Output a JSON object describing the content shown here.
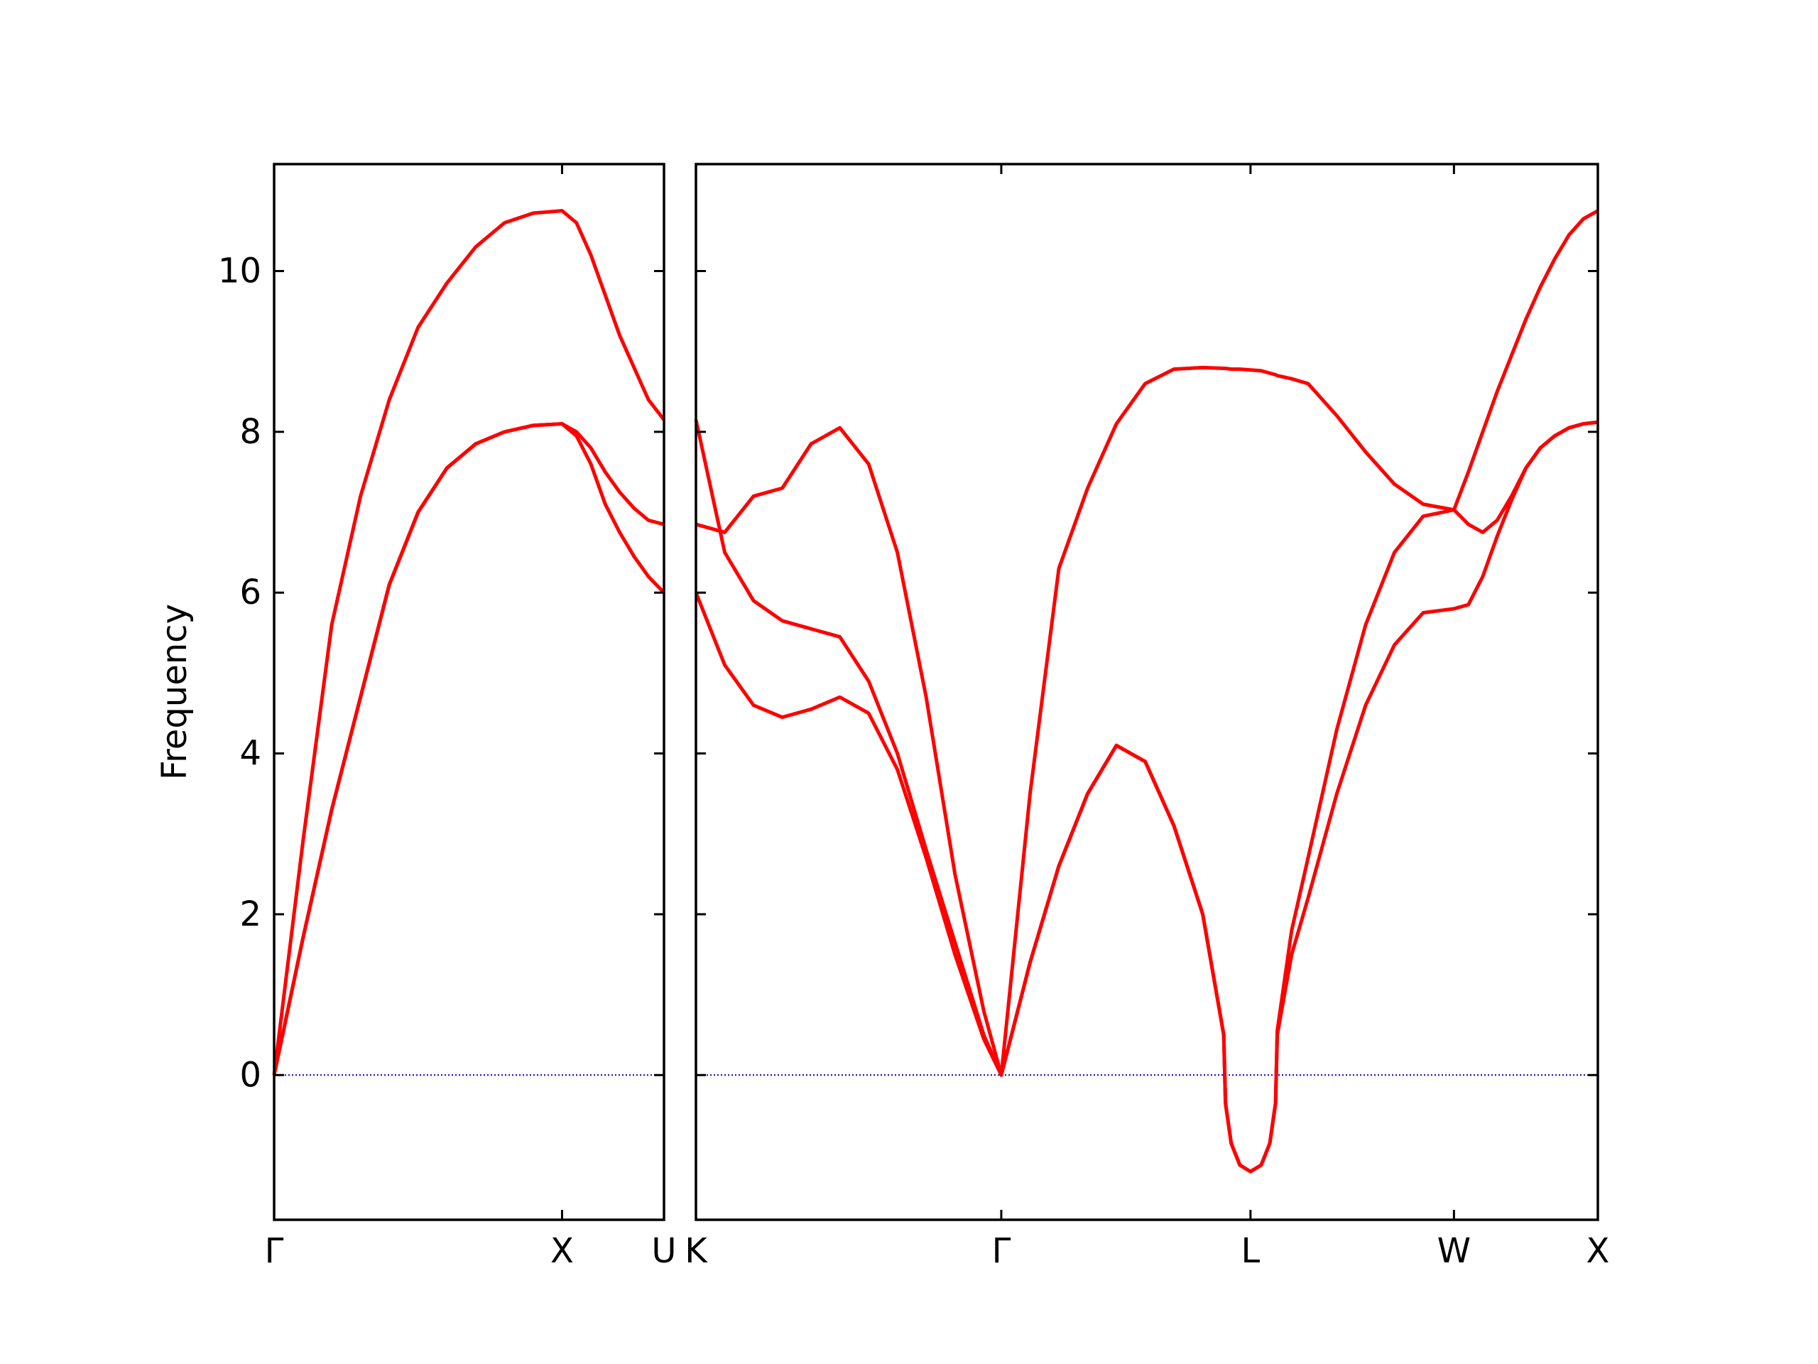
{
  "chart_data": [
    {
      "type": "line",
      "ylabel": "Frequency",
      "x": [
        0,
        0.1,
        0.2,
        0.3,
        0.4,
        0.5,
        0.6,
        0.7,
        0.8,
        0.9,
        1.0,
        1.05,
        1.1,
        1.15,
        1.2,
        1.25,
        1.3,
        1.354
      ],
      "xlim": [
        0,
        1.354
      ],
      "xticks": [
        {
          "value": 0,
          "label": "Γ"
        },
        {
          "value": 1,
          "label": "X"
        },
        {
          "value": 1.354,
          "label": "U"
        }
      ],
      "ylim": [
        -1.8,
        11.33
      ],
      "yticks": [
        0,
        2,
        4,
        6,
        8,
        10
      ],
      "show_ytick_labels": true,
      "zero_line": true,
      "zero_line_color": "#0000cc",
      "series": [
        {
          "color": "#ff0000",
          "values": [
            0,
            2.9,
            5.6,
            7.2,
            8.4,
            9.3,
            9.85,
            10.3,
            10.6,
            10.72,
            10.75,
            10.6,
            10.2,
            9.7,
            9.2,
            8.8,
            8.4,
            8.15
          ]
        },
        {
          "color": "#ff0000",
          "values": [
            0,
            1.7,
            3.3,
            4.7,
            6.1,
            7.0,
            7.55,
            7.85,
            8.0,
            8.08,
            8.1,
            7.95,
            7.6,
            7.1,
            6.75,
            6.45,
            6.2,
            6.0
          ]
        },
        {
          "color": "#ff0000",
          "values": [
            0,
            1.7,
            3.3,
            4.7,
            6.1,
            7.0,
            7.55,
            7.85,
            8.0,
            8.08,
            8.1,
            8.0,
            7.8,
            7.5,
            7.25,
            7.05,
            6.9,
            6.85
          ]
        }
      ]
    },
    {
      "type": "line",
      "x": [
        0,
        0.1,
        0.2,
        0.3,
        0.4,
        0.5,
        0.6,
        0.7,
        0.8,
        0.9,
        1.0,
        1.061,
        1.161,
        1.261,
        1.361,
        1.461,
        1.561,
        1.661,
        1.761,
        1.834,
        1.84,
        1.86,
        1.89,
        1.927,
        1.964,
        1.994,
        2.014,
        2.02,
        2.07,
        2.127,
        2.227,
        2.327,
        2.427,
        2.527,
        2.634,
        2.684,
        2.734,
        2.784,
        2.834,
        2.884,
        2.934,
        2.984,
        3.034,
        3.084,
        3.134
      ],
      "xlim": [
        0,
        3.134
      ],
      "xticks": [
        {
          "value": 0,
          "label": "K"
        },
        {
          "value": 1.061,
          "label": "Γ"
        },
        {
          "value": 1.927,
          "label": "L"
        },
        {
          "value": 2.634,
          "label": "W"
        },
        {
          "value": 3.134,
          "label": "X"
        }
      ],
      "ylim": [
        -1.8,
        11.33
      ],
      "yticks": [
        0,
        2,
        4,
        6,
        8,
        10
      ],
      "show_ytick_labels": false,
      "zero_line": true,
      "zero_line_color": "#0000cc",
      "series": [
        {
          "color": "#ff0000",
          "values": [
            8.15,
            6.5,
            5.9,
            5.65,
            5.55,
            5.45,
            4.9,
            4.0,
            2.8,
            1.65,
            0.5,
            0,
            3.5,
            6.3,
            7.3,
            8.1,
            8.6,
            8.78,
            8.8,
            8.79,
            8.79,
            8.78,
            8.78,
            8.77,
            8.76,
            8.73,
            8.71,
            8.7,
            8.66,
            8.6,
            8.2,
            7.75,
            7.35,
            7.1,
            7.03,
            7.5,
            8.0,
            8.5,
            8.95,
            9.4,
            9.8,
            10.15,
            10.45,
            10.65,
            10.75
          ]
        },
        {
          "color": "#ff0000",
          "values": [
            6.85,
            6.75,
            7.2,
            7.3,
            7.85,
            8.05,
            7.6,
            6.5,
            4.7,
            2.5,
            0.8,
            0,
            1.4,
            2.6,
            3.5,
            4.1,
            3.9,
            3.1,
            2.0,
            0.5,
            -0.35,
            -0.85,
            -1.12,
            -1.2,
            -1.12,
            -0.85,
            -0.35,
            0.55,
            1.8,
            2.7,
            4.3,
            5.6,
            6.5,
            6.95,
            7.03,
            6.85,
            6.75,
            6.9,
            7.2,
            7.55,
            7.8,
            7.95,
            8.05,
            8.1,
            8.12
          ]
        },
        {
          "color": "#ff0000",
          "values": [
            6.0,
            5.1,
            4.6,
            4.45,
            4.55,
            4.7,
            4.5,
            3.8,
            2.7,
            1.5,
            0.45,
            0,
            1.4,
            2.6,
            3.5,
            4.1,
            3.9,
            3.1,
            2.0,
            0.5,
            -0.35,
            -0.85,
            -1.12,
            -1.2,
            -1.12,
            -0.85,
            -0.35,
            0.5,
            1.5,
            2.2,
            3.5,
            4.6,
            5.35,
            5.75,
            5.8,
            5.85,
            6.2,
            6.7,
            7.15,
            7.55,
            7.8,
            7.95,
            8.05,
            8.1,
            8.12
          ]
        }
      ]
    }
  ]
}
